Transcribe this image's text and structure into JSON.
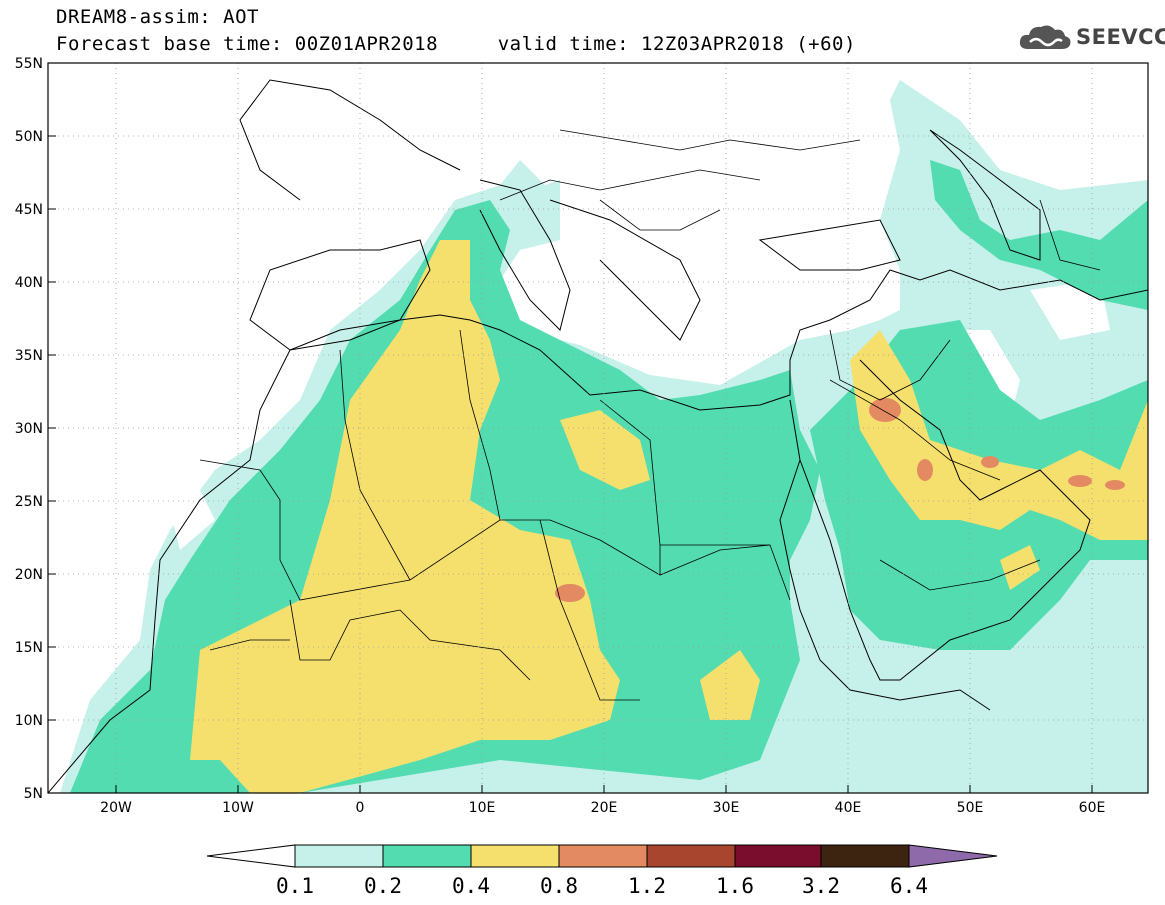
{
  "header": {
    "title_line1": "DREAM8-assim: AOT",
    "title_line2": "Forecast base time: 00Z01APR2018     valid time: 12Z03APR2018 (+60)",
    "logo_text": "SEEVCCC"
  },
  "map": {
    "lat_labels": [
      "55N",
      "50N",
      "45N",
      "40N",
      "35N",
      "30N",
      "25N",
      "20N",
      "15N",
      "10N",
      "5N"
    ],
    "lon_labels": [
      "20W",
      "10W",
      "0",
      "10E",
      "20E",
      "30E",
      "40E",
      "50E",
      "60E"
    ],
    "lon_range": [
      -25,
      65
    ],
    "lat_range": [
      5,
      55
    ]
  },
  "colorbar": {
    "levels": [
      "0.1",
      "0.2",
      "0.4",
      "0.8",
      "1.2",
      "1.6",
      "3.2",
      "6.4"
    ],
    "colors": [
      "#ffffff",
      "#c6f0ea",
      "#52dcb0",
      "#f5e06e",
      "#e48a62",
      "#a8452e",
      "#7a0c2e",
      "#3c2410",
      "#8e6aaa"
    ]
  },
  "legend_colors": {
    "low": "#c6f0ea",
    "mid": "#52dcb0",
    "high": "#f5e06e",
    "peak": "#e48a62"
  }
}
